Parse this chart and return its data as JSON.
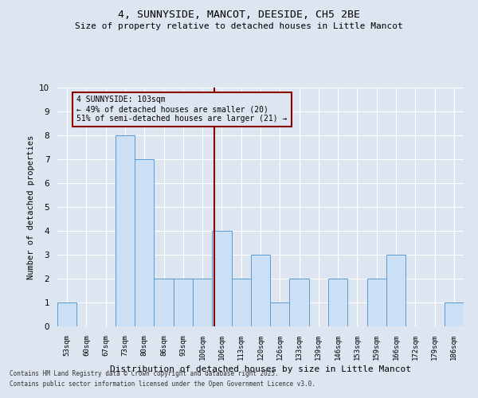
{
  "title1": "4, SUNNYSIDE, MANCOT, DEESIDE, CH5 2BE",
  "title2": "Size of property relative to detached houses in Little Mancot",
  "xlabel": "Distribution of detached houses by size in Little Mancot",
  "ylabel": "Number of detached properties",
  "categories": [
    "53sqm",
    "60sqm",
    "67sqm",
    "73sqm",
    "80sqm",
    "86sqm",
    "93sqm",
    "100sqm",
    "106sqm",
    "113sqm",
    "120sqm",
    "126sqm",
    "133sqm",
    "139sqm",
    "146sqm",
    "153sqm",
    "159sqm",
    "166sqm",
    "172sqm",
    "179sqm",
    "186sqm"
  ],
  "values": [
    1,
    0,
    0,
    8,
    7,
    2,
    2,
    2,
    4,
    2,
    3,
    1,
    2,
    0,
    2,
    0,
    2,
    3,
    0,
    0,
    1
  ],
  "bar_color": "#cce0f5",
  "bar_edge_color": "#5b9bd5",
  "vline_x": 7.6,
  "vline_color": "#8b0000",
  "annotation_text": "4 SUNNYSIDE: 103sqm\n← 49% of detached houses are smaller (20)\n51% of semi-detached houses are larger (21) →",
  "annotation_box_color": "#8b0000",
  "ylim": [
    0,
    10
  ],
  "yticks": [
    0,
    1,
    2,
    3,
    4,
    5,
    6,
    7,
    8,
    9,
    10
  ],
  "bg_color": "#dde5f0",
  "grid_color": "#ffffff",
  "footer1": "Contains HM Land Registry data © Crown copyright and database right 2025.",
  "footer2": "Contains public sector information licensed under the Open Government Licence v3.0."
}
